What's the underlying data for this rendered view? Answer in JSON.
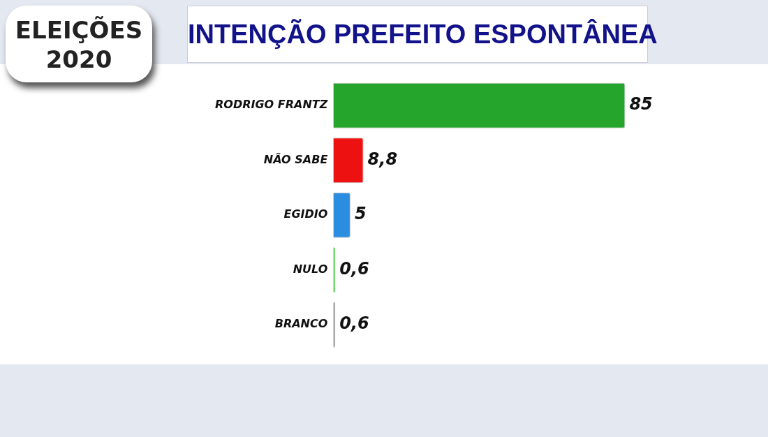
{
  "chart_data": {
    "type": "bar",
    "orientation": "horizontal",
    "title": "INTENÇÃO PREFEITO ESPONTÂNEA",
    "categories": [
      "RODRIGO FRANTZ",
      "NÃO SABE",
      "EGIDIO",
      "NULO",
      "BRANCO"
    ],
    "values": [
      85,
      8.8,
      5,
      0.6,
      0.6
    ],
    "colors": [
      "#26a52c",
      "#ee1111",
      "#2b8de0",
      "#22dd22",
      "#8a8a90"
    ],
    "value_labels": [
      "85",
      "8,8",
      "5",
      "0,6",
      "0,6"
    ],
    "grid": false,
    "legend": false,
    "annotations": [
      "ELEIÇÕES 2020"
    ]
  }
}
